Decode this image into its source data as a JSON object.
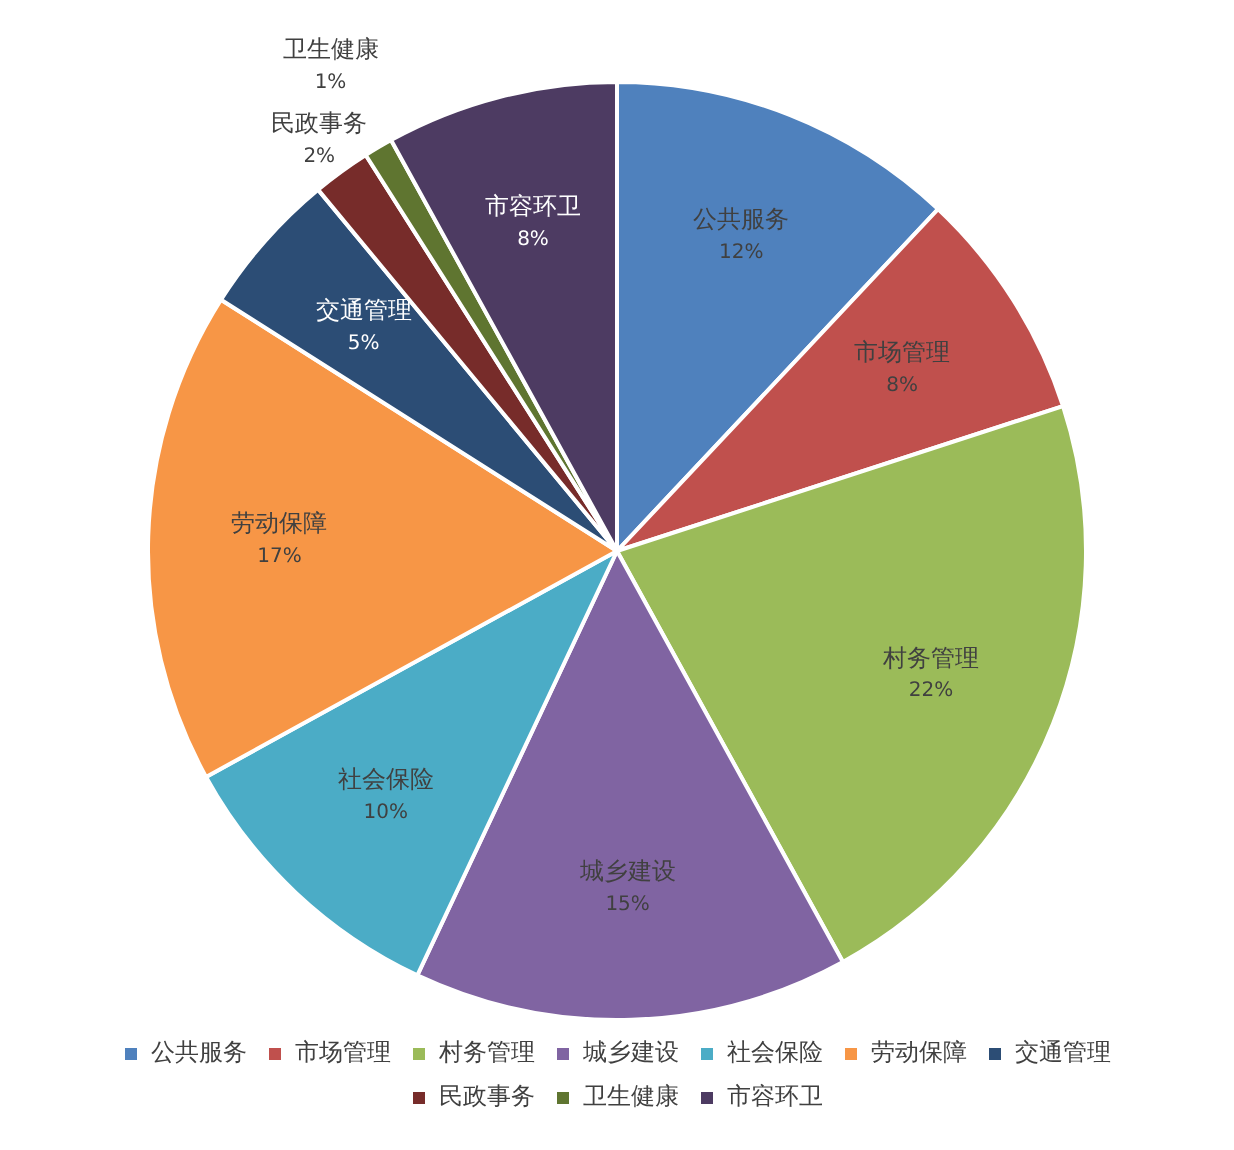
{
  "chart_data": {
    "type": "pie",
    "categories": [
      "公共服务",
      "市场管理",
      "村务管理",
      "城乡建设",
      "社会保险",
      "劳动保障",
      "交通管理",
      "民政事务",
      "卫生健康",
      "市容环卫"
    ],
    "values": [
      12,
      8,
      22,
      15,
      10,
      17,
      5,
      2,
      1,
      8
    ],
    "colors": [
      "#4f81bd",
      "#c0504d",
      "#9bbb59",
      "#8064a2",
      "#4bacc6",
      "#f79646",
      "#2c4d75",
      "#772c2a",
      "#5f7530",
      "#4d3b62"
    ],
    "value_labels": [
      "12%",
      "8%",
      "22%",
      "15%",
      "10%",
      "17%",
      "5%",
      "2%",
      "1%",
      "8%"
    ],
    "legend": "bottom"
  }
}
